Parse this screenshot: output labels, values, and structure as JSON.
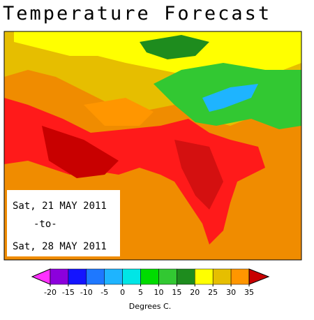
{
  "header": {
    "title": "Temperature Forecast"
  },
  "date_range": {
    "start": "Sat, 21 MAY 2011",
    "separator": "-to-",
    "end": "Sat, 28 MAY 2011"
  },
  "legend": {
    "label": "Degrees C.",
    "ticks": [
      -20,
      -15,
      -10,
      -5,
      0,
      5,
      10,
      15,
      20,
      25,
      30,
      35
    ],
    "colors": [
      "#8c00dc",
      "#1414ff",
      "#1e78ff",
      "#1eb4ff",
      "#00e6e6",
      "#00dc00",
      "#32c832",
      "#1e8c1e",
      "#ffff00",
      "#e6be00",
      "#ff9600"
    ],
    "under_color": "#ff30ff",
    "over_color": "#c80000",
    "top_color": "#ff1a1a"
  }
}
